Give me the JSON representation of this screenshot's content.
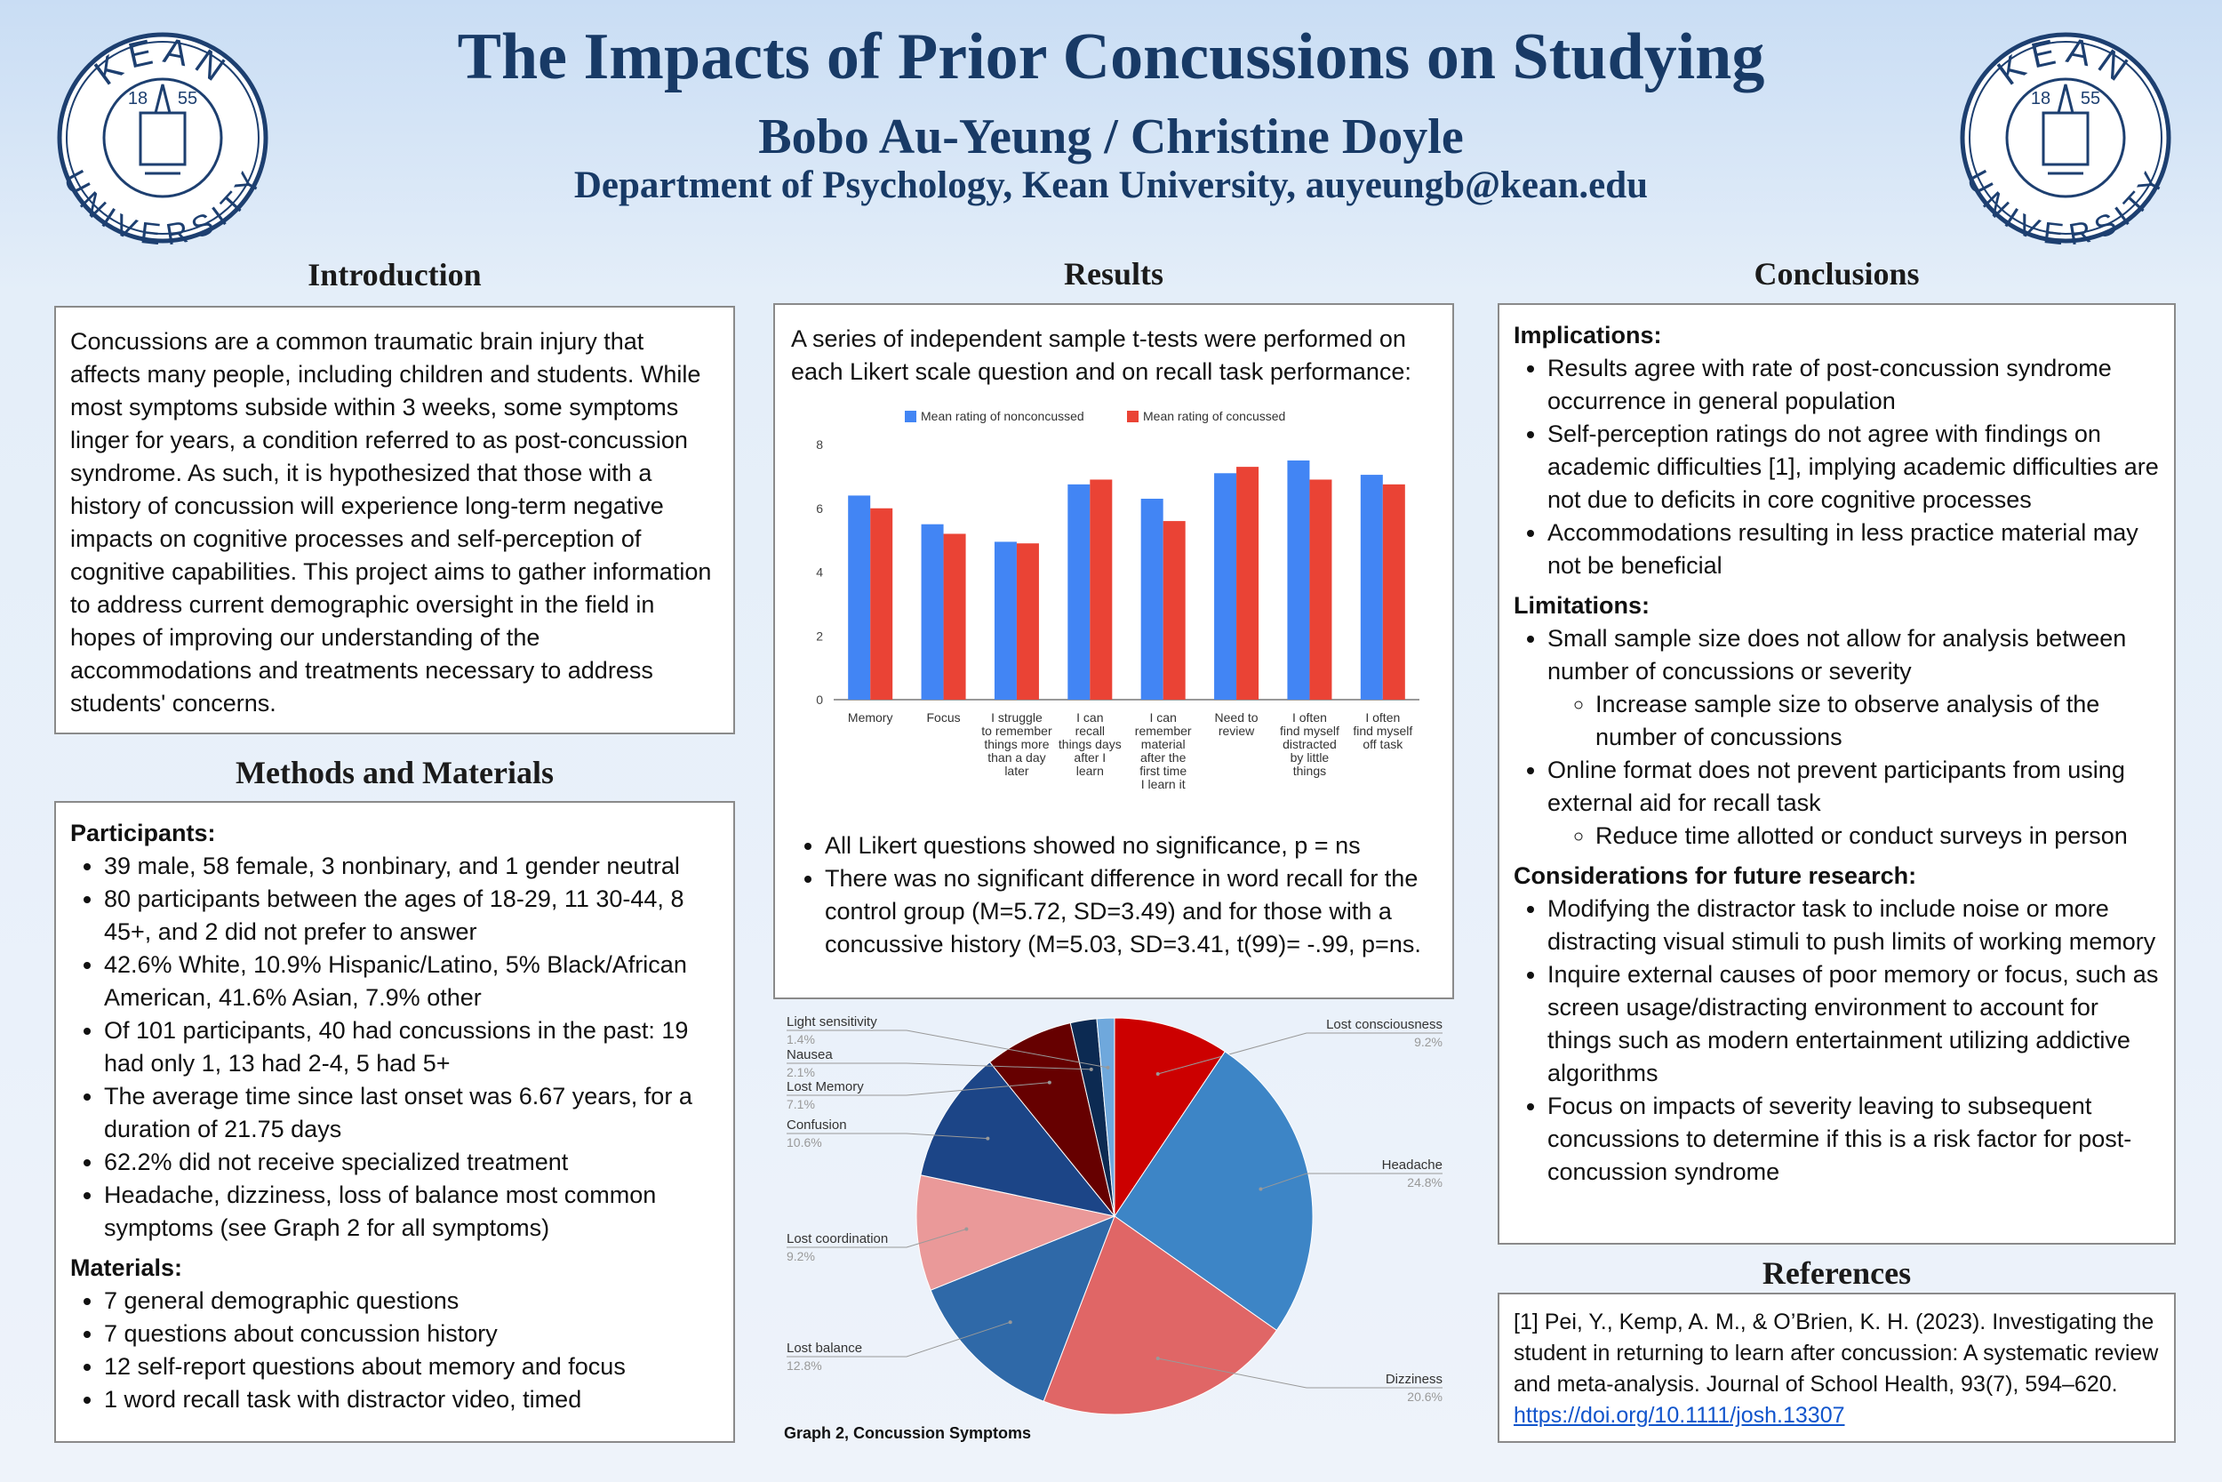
{
  "header": {
    "title": "The Impacts of Prior Concussions on Studying",
    "authors": "Bobo Au-Yeung / Christine Doyle",
    "affiliation": "Department of Psychology, Kean University, auyeungb@kean.edu"
  },
  "logo": {
    "top": "KEAN",
    "bottom": "UNIVERSITY",
    "year_left": "18",
    "year_right": "55"
  },
  "introduction": {
    "heading": "Introduction",
    "text": "Concussions are a common traumatic brain injury that affects many people, including children and students. While most symptoms subside within 3 weeks, some symptoms linger for years, a condition referred to as post-concussion syndrome. As such, it is hypothesized that those with a history of concussion will experience long-term negative impacts on cognitive processes and self-perception of cognitive capabilities. This project aims to gather information to address current demographic oversight in the field in hopes of improving our understanding of the accommodations and treatments necessary to address students' concerns."
  },
  "methods": {
    "heading": "Methods and Materials",
    "sections": [
      {
        "label": "Participants:",
        "items": [
          {
            "text": "39 male, 58 female, 3 nonbinary, and 1 gender neutral"
          },
          {
            "text": "80 participants between the ages of 18-29, 11 30-44, 8 45+, and 2 did not prefer to answer"
          },
          {
            "text": "42.6% White, 10.9% Hispanic/Latino, 5% Black/African American, 41.6% Asian, 7.9% other"
          },
          {
            "text": "Of 101 participants, 40 had concussions in the past: 19 had only 1, 13 had 2-4, 5 had 5+"
          },
          {
            "text": "The average time since last onset was 6.67 years, for a duration of 21.75 days"
          },
          {
            "text": "62.2% did not receive specialized treatment"
          },
          {
            "text": "Headache, dizziness, loss of balance most common symptoms (see Graph 2 for all symptoms)"
          }
        ]
      },
      {
        "label": "Materials:",
        "items": [
          {
            "text": "7 general demographic questions"
          },
          {
            "text": "7 questions about concussion history"
          },
          {
            "text": "12 self-report questions about memory and focus"
          },
          {
            "text": "1 word recall task with distractor video, timed"
          }
        ]
      }
    ]
  },
  "results": {
    "heading": "Results",
    "intro": "A series of independent sample t-tests were performed on each Likert scale question and on recall task performance:",
    "bullets": [
      "All Likert questions showed no significance, p = ns",
      "There was no significant difference in word recall for the control group (M=5.72, SD=3.49) and for those with a concussive history (M=5.03, SD=3.41, t(99)= -.99, p=ns."
    ]
  },
  "conclusions": {
    "heading": "Conclusions",
    "sections": [
      {
        "label": "Implications:",
        "items": [
          {
            "text": "Results agree with rate of post-concussion syndrome occurrence in general population"
          },
          {
            "text": "Self-perception ratings do not agree with findings on academic difficulties [1], implying academic difficulties are not due to deficits in core cognitive processes"
          },
          {
            "text": "Accommodations resulting in less practice material may not be beneficial"
          }
        ]
      },
      {
        "label": "Limitations:",
        "items": [
          {
            "text": "Small sample size does not allow for analysis between number of concussions or severity",
            "sub": [
              "Increase sample size to observe analysis of the number of concussions"
            ]
          },
          {
            "text": "Online format does not prevent participants from using external aid for recall task",
            "sub": [
              "Reduce time allotted or conduct surveys in person"
            ]
          }
        ]
      },
      {
        "label": "Considerations for future research:",
        "items": [
          {
            "text": "Modifying the distractor task to include noise or more distracting visual stimuli to push limits of working memory"
          },
          {
            "text": "Inquire external causes of poor memory or focus, such as screen usage/distracting environment to account for things such as modern entertainment utilizing addictive algorithms"
          },
          {
            "text": "Focus on impacts of severity leaving to subsequent concussions to determine if this is a risk factor for post-concussion syndrome"
          }
        ]
      }
    ]
  },
  "references": {
    "heading": "References",
    "text": "[1] Pei, Y., Kemp, A. M., & O’Brien, K. H. (2023). Investigating the student in returning to learn after concussion: A systematic review and meta-analysis. Journal of School Health, 93(7), 594–620.",
    "link": "https://doi.org/10.1111/josh.13307"
  },
  "chart_data": [
    {
      "type": "bar",
      "categories": [
        "Memory",
        "Focus",
        "I struggle to remember things more than a day later",
        "I can recall things days after I learn",
        "I can remember material after the first time I learn it",
        "Need to review",
        "I often find myself distracted by little things",
        "I often find myself off task"
      ],
      "series": [
        {
          "name": "Mean rating of nonconcussed",
          "color": "#4285f4",
          "values": [
            6.4,
            5.5,
            4.95,
            6.75,
            6.3,
            7.1,
            7.5,
            7.05
          ]
        },
        {
          "name": "Mean rating of concussed",
          "color": "#ea4335",
          "values": [
            6.0,
            5.2,
            4.9,
            6.9,
            5.6,
            7.3,
            6.9,
            6.75
          ]
        }
      ],
      "ylim": [
        0,
        8
      ],
      "yticks": [
        0,
        2,
        4,
        6,
        8
      ],
      "grid": false,
      "legend": "top"
    },
    {
      "type": "pie",
      "title": "Graph 2, Concussion Symptoms",
      "categories": [
        "Lost consciousness",
        "Headache",
        "Dizziness",
        "Lost balance",
        "Lost coordination",
        "Confusion",
        "Lost Memory",
        "Nausea",
        "Light sensitivity"
      ],
      "values": [
        9.2,
        24.8,
        20.6,
        12.8,
        9.2,
        10.6,
        7.1,
        2.1,
        1.4
      ],
      "value_labels": [
        "9.2%",
        "24.8%",
        "20.6%",
        "12.8%",
        "9.2%",
        "10.6%",
        "7.1%",
        "2.1%",
        "1.4%"
      ],
      "colors": [
        "#cc0000",
        "#3d85c6",
        "#e06666",
        "#2f69a8",
        "#ea9999",
        "#1c4587",
        "#660000",
        "#0c2a52",
        "#6fa8dc"
      ]
    }
  ]
}
